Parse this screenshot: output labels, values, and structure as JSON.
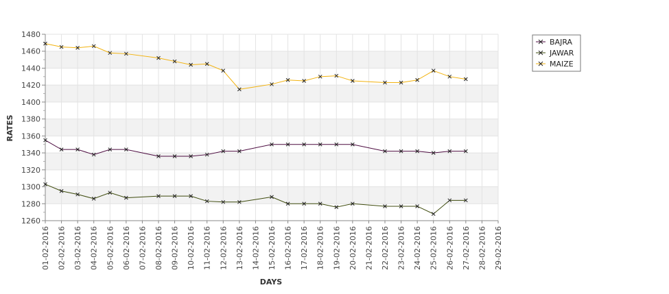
{
  "chart_data": {
    "type": "line",
    "title": "",
    "xlabel": "DAYS",
    "ylabel": "RATES",
    "ylim": [
      1260,
      1480
    ],
    "yticks": [
      1260,
      1280,
      1300,
      1320,
      1340,
      1360,
      1380,
      1400,
      1420,
      1440,
      1460,
      1480
    ],
    "categories": [
      "01-02-2016",
      "02-02-2016",
      "03-02-2016",
      "04-02-2016",
      "05-02-2016",
      "06-02-2016",
      "07-02-2016",
      "08-02-2016",
      "09-02-2016",
      "10-02-2016",
      "11-02-2016",
      "12-02-2016",
      "13-02-2016",
      "14-02-2016",
      "15-02-2016",
      "16-02-2016",
      "17-02-2016",
      "18-02-2016",
      "19-02-2016",
      "20-02-2016",
      "21-02-2016",
      "22-02-2016",
      "23-02-2016",
      "24-02-2016",
      "25-02-2016",
      "26-02-2016",
      "27-02-2016",
      "28-02-2016",
      "29-02-2016"
    ],
    "grid": true,
    "legend_position": "top-right",
    "series": [
      {
        "name": "BAJRA",
        "color": "#4b0a3f",
        "marker": "x",
        "values": [
          1355,
          1344,
          1344,
          1338,
          1344,
          1344,
          null,
          1336,
          1336,
          1336,
          1338,
          1342,
          1342,
          null,
          1350,
          1350,
          1350,
          1350,
          1350,
          1350,
          null,
          1342,
          1342,
          1342,
          1340,
          1342,
          1342,
          null,
          null
        ]
      },
      {
        "name": "JAWAR",
        "color": "#3d4a0c",
        "marker": "x",
        "values": [
          1303,
          1295,
          1291,
          1286,
          1293,
          1287,
          null,
          1289,
          1289,
          1289,
          1283,
          1282,
          1282,
          null,
          1288,
          1280,
          1280,
          1280,
          1276,
          1280,
          null,
          1277,
          1277,
          1277,
          1268,
          1284,
          1284,
          null,
          null
        ]
      },
      {
        "name": "MAIZE",
        "color": "#f2b20d",
        "marker": "x",
        "values": [
          1469,
          1465,
          1464,
          1466,
          1458,
          1457,
          null,
          1452,
          1448,
          1444,
          1445,
          1437,
          1415,
          null,
          1421,
          1426,
          1425,
          1430,
          1431,
          1425,
          null,
          1423,
          1423,
          1426,
          1437,
          1430,
          1427,
          null,
          null
        ]
      }
    ]
  }
}
